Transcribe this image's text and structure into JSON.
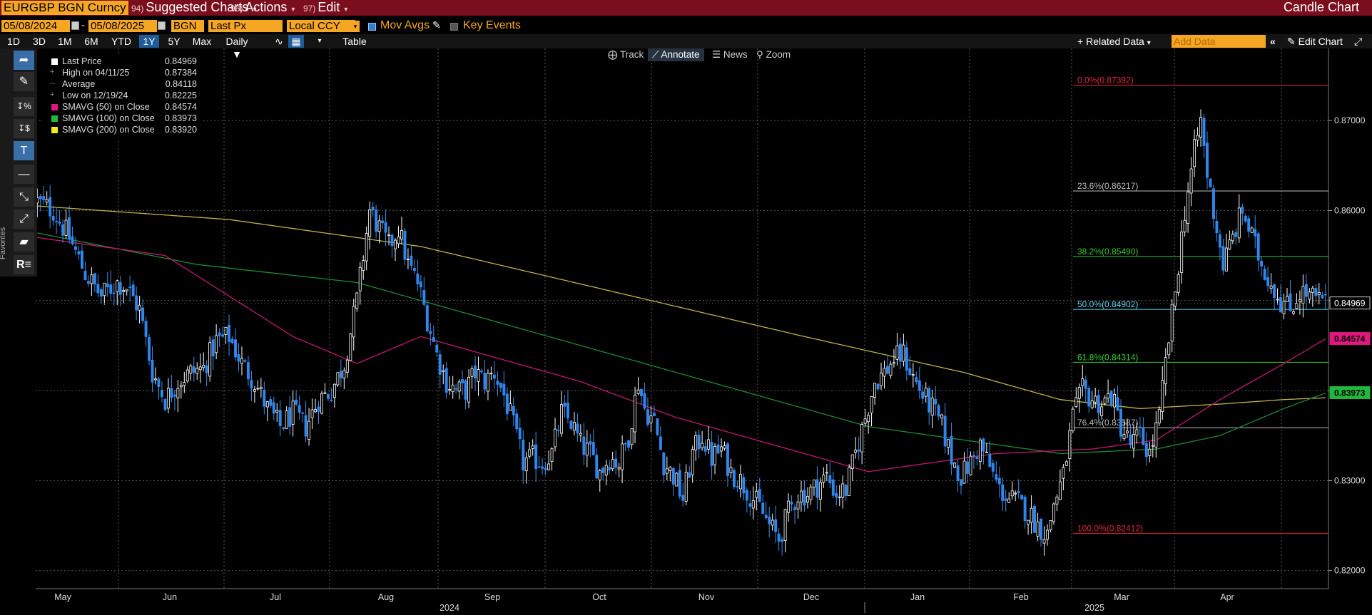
{
  "header": {
    "ticker": "EURGBP BGN Curncy",
    "menus": [
      {
        "num": "94)",
        "label": "Suggested Charts"
      },
      {
        "num": "96)",
        "label": "Actions"
      },
      {
        "num": "97)",
        "label": "Edit"
      }
    ],
    "title": "Candle Chart"
  },
  "controls": {
    "start_date": "05/08/2024",
    "dash": "-",
    "end_date": "05/08/2025",
    "source": "BGN",
    "field": "Last Px",
    "currency": "Local CCY",
    "mov_avgs_label": "Mov Avgs",
    "key_events_label": "Key Events"
  },
  "ranges": [
    "1D",
    "3D",
    "1M",
    "6M",
    "YTD",
    "1Y",
    "5Y",
    "Max"
  ],
  "active_range": "1Y",
  "period": "Daily",
  "table_label": "Table",
  "related_data": "Related Data",
  "add_data_placeholder": "Add Data",
  "edit_chart": "Edit Chart",
  "favorites": "Favorites",
  "chart_tools": [
    {
      "label": "Track",
      "icon": "crosshair-icon"
    },
    {
      "label": "Annotate",
      "icon": "pencil-icon"
    },
    {
      "label": "News",
      "icon": "news-icon"
    },
    {
      "label": "Zoom",
      "icon": "zoom-icon"
    }
  ],
  "legend": [
    {
      "label": "Last Price",
      "value": "0.84969",
      "color": "#ffffff",
      "glyph": ""
    },
    {
      "label": "High on 04/11/25",
      "value": "0.87384",
      "color": "",
      "glyph": "+"
    },
    {
      "label": "Average",
      "value": "0.84118",
      "color": "",
      "glyph": "--"
    },
    {
      "label": "Low on 12/19/24",
      "value": "0.82225",
      "color": "",
      "glyph": "+"
    },
    {
      "label": "SMAVG (50)  on Close",
      "value": "0.84574",
      "color": "#e0177e",
      "glyph": ""
    },
    {
      "label": "SMAVG (100)  on Close",
      "value": "0.83973",
      "color": "#1fb83c",
      "glyph": ""
    },
    {
      "label": "SMAVG (200)  on Close",
      "value": "0.83920",
      "color": "#f2ea1c",
      "glyph": ""
    }
  ],
  "chart_data": {
    "type": "candlestick",
    "ylim": [
      0.818,
      0.878
    ],
    "y_ticks": [
      "0.82000",
      "0.83000",
      "0.84000",
      "0.85000",
      "0.86000",
      "0.87000"
    ],
    "x_months": [
      "May",
      "Jun",
      "Jul",
      "Aug",
      "Sep",
      "Oct",
      "Nov",
      "Dec",
      "Jan",
      "Feb",
      "Mar",
      "Apr"
    ],
    "x_years": [
      "2024",
      "2025"
    ],
    "right_labels": [
      {
        "text": "0.84969",
        "value": 0.84969,
        "color": "#ffffff"
      },
      {
        "text": "0.84574",
        "value": 0.84574,
        "color": "#e0177e"
      },
      {
        "text": "0.83973",
        "value": 0.83973,
        "color": "#1fb83c"
      }
    ],
    "fibonacci": [
      {
        "label": "0.0%(0.87392)",
        "value": 0.87392,
        "color": "#e0263a"
      },
      {
        "label": "23.6%(0.86217)",
        "value": 0.86217,
        "color": "#bbbbbb"
      },
      {
        "label": "38.2%(0.85490)",
        "value": 0.8549,
        "color": "#33cc33"
      },
      {
        "label": "50.0%(0.84902)",
        "value": 0.84902,
        "color": "#5fd3f0"
      },
      {
        "label": "61.8%(0.84314)",
        "value": 0.84314,
        "color": "#33cc33"
      },
      {
        "label": "76.4%(0.83587)",
        "value": 0.83587,
        "color": "#bbbbbb"
      },
      {
        "label": "100.0%(0.82412)",
        "value": 0.82412,
        "color": "#e0263a"
      }
    ],
    "close_path": [
      [
        0,
        0.861
      ],
      [
        5,
        0.86
      ],
      [
        10,
        0.857
      ],
      [
        15,
        0.853
      ],
      [
        20,
        0.8505
      ],
      [
        25,
        0.852
      ],
      [
        28,
        0.8515
      ],
      [
        32,
        0.849
      ],
      [
        36,
        0.842
      ],
      [
        40,
        0.839
      ],
      [
        44,
        0.841
      ],
      [
        48,
        0.842
      ],
      [
        52,
        0.8425
      ],
      [
        56,
        0.8455
      ],
      [
        60,
        0.846
      ],
      [
        64,
        0.843
      ],
      [
        68,
        0.841
      ],
      [
        72,
        0.838
      ],
      [
        76,
        0.836
      ],
      [
        80,
        0.8375
      ],
      [
        84,
        0.836
      ],
      [
        88,
        0.839
      ],
      [
        92,
        0.84
      ],
      [
        96,
        0.843
      ],
      [
        100,
        0.85
      ],
      [
        104,
        0.86
      ],
      [
        107,
        0.858
      ],
      [
        110,
        0.856
      ],
      [
        113,
        0.858
      ],
      [
        116,
        0.854
      ],
      [
        119,
        0.852
      ],
      [
        122,
        0.848
      ],
      [
        125,
        0.844
      ],
      [
        128,
        0.841
      ],
      [
        131,
        0.84
      ],
      [
        134,
        0.84
      ],
      [
        137,
        0.842
      ],
      [
        140,
        0.841
      ],
      [
        143,
        0.842
      ],
      [
        146,
        0.8395
      ],
      [
        149,
        0.836
      ],
      [
        152,
        0.832
      ],
      [
        155,
        0.8325
      ],
      [
        158,
        0.832
      ],
      [
        161,
        0.833
      ],
      [
        164,
        0.8375
      ],
      [
        167,
        0.8365
      ],
      [
        170,
        0.834
      ],
      [
        173,
        0.833
      ],
      [
        176,
        0.831
      ],
      [
        179,
        0.8325
      ],
      [
        182,
        0.832
      ],
      [
        185,
        0.835
      ],
      [
        188,
        0.841
      ],
      [
        190,
        0.838
      ],
      [
        193,
        0.8365
      ],
      [
        196,
        0.832
      ],
      [
        199,
        0.8305
      ],
      [
        202,
        0.828
      ],
      [
        205,
        0.833
      ],
      [
        208,
        0.835
      ],
      [
        211,
        0.8325
      ],
      [
        214,
        0.8335
      ],
      [
        217,
        0.831
      ],
      [
        220,
        0.83
      ],
      [
        223,
        0.8285
      ],
      [
        226,
        0.827
      ],
      [
        229,
        0.825
      ],
      [
        232,
        0.8235
      ],
      [
        235,
        0.8265
      ],
      [
        238,
        0.8285
      ],
      [
        241,
        0.8285
      ],
      [
        244,
        0.8295
      ],
      [
        247,
        0.8305
      ],
      [
        250,
        0.8285
      ],
      [
        253,
        0.829
      ],
      [
        256,
        0.833
      ],
      [
        259,
        0.837
      ],
      [
        262,
        0.841
      ],
      [
        265,
        0.842
      ],
      [
        268,
        0.8435
      ],
      [
        271,
        0.844
      ],
      [
        274,
        0.8415
      ],
      [
        277,
        0.8395
      ],
      [
        280,
        0.838
      ],
      [
        283,
        0.836
      ],
      [
        286,
        0.8325
      ],
      [
        289,
        0.8305
      ],
      [
        292,
        0.832
      ],
      [
        295,
        0.834
      ],
      [
        298,
        0.8315
      ],
      [
        301,
        0.829
      ],
      [
        304,
        0.828
      ],
      [
        307,
        0.8275
      ],
      [
        310,
        0.8265
      ],
      [
        313,
        0.825
      ],
      [
        316,
        0.824
      ],
      [
        318,
        0.8275
      ],
      [
        321,
        0.8305
      ],
      [
        324,
        0.837
      ],
      [
        327,
        0.84
      ],
      [
        330,
        0.839
      ],
      [
        333,
        0.8385
      ],
      [
        336,
        0.8395
      ],
      [
        339,
        0.836
      ],
      [
        342,
        0.834
      ],
      [
        345,
        0.835
      ],
      [
        348,
        0.833
      ],
      [
        351,
        0.837
      ],
      [
        353,
        0.843
      ],
      [
        356,
        0.851
      ],
      [
        359,
        0.86
      ],
      [
        362,
        0.8665
      ],
      [
        364,
        0.87
      ],
      [
        366,
        0.864
      ],
      [
        368,
        0.86
      ],
      [
        371,
        0.854
      ],
      [
        374,
        0.857
      ],
      [
        377,
        0.86
      ],
      [
        380,
        0.857
      ],
      [
        383,
        0.854
      ],
      [
        386,
        0.852
      ],
      [
        389,
        0.85
      ],
      [
        392,
        0.849
      ],
      [
        395,
        0.851
      ],
      [
        398,
        0.8505
      ],
      [
        401,
        0.85
      ],
      [
        403,
        0.84969
      ]
    ],
    "sma50": [
      [
        0,
        0.857
      ],
      [
        40,
        0.855
      ],
      [
        80,
        0.846
      ],
      [
        100,
        0.843
      ],
      [
        120,
        0.846
      ],
      [
        140,
        0.844
      ],
      [
        170,
        0.841
      ],
      [
        200,
        0.837
      ],
      [
        230,
        0.834
      ],
      [
        260,
        0.831
      ],
      [
        280,
        0.832
      ],
      [
        300,
        0.833
      ],
      [
        330,
        0.8335
      ],
      [
        350,
        0.8345
      ],
      [
        370,
        0.839
      ],
      [
        390,
        0.843
      ],
      [
        403,
        0.84574
      ]
    ],
    "sma100": [
      [
        0,
        0.8575
      ],
      [
        50,
        0.854
      ],
      [
        100,
        0.852
      ],
      [
        140,
        0.848
      ],
      [
        180,
        0.844
      ],
      [
        220,
        0.84
      ],
      [
        260,
        0.836
      ],
      [
        290,
        0.8345
      ],
      [
        320,
        0.833
      ],
      [
        350,
        0.8335
      ],
      [
        370,
        0.835
      ],
      [
        390,
        0.838
      ],
      [
        403,
        0.83973
      ]
    ],
    "sma200": [
      [
        0,
        0.8605
      ],
      [
        60,
        0.859
      ],
      [
        120,
        0.856
      ],
      [
        180,
        0.851
      ],
      [
        240,
        0.846
      ],
      [
        290,
        0.842
      ],
      [
        320,
        0.839
      ],
      [
        345,
        0.838
      ],
      [
        370,
        0.8385
      ],
      [
        390,
        0.839
      ],
      [
        403,
        0.8392
      ]
    ]
  }
}
